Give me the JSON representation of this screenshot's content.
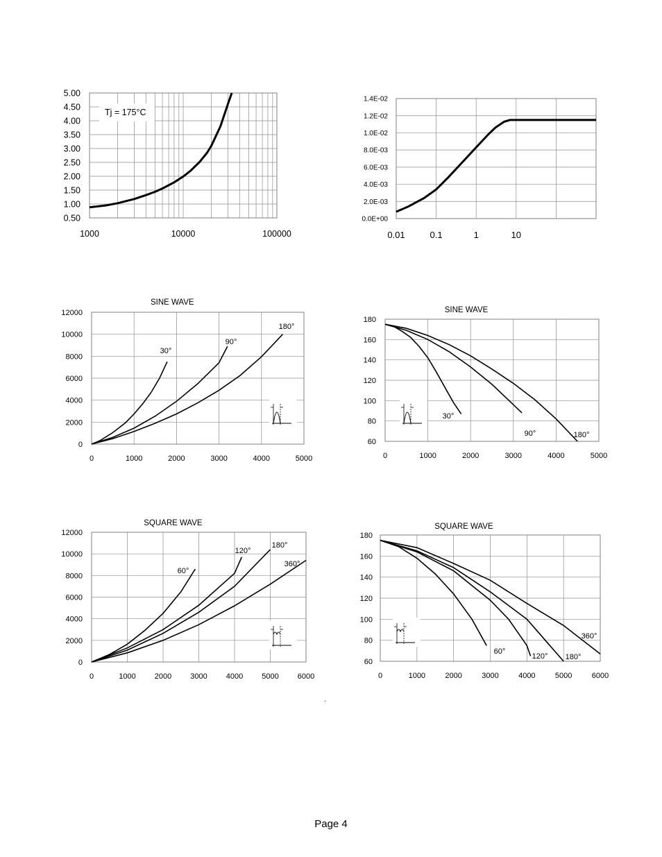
{
  "page": {
    "footer": "Page 4",
    "stray_mark": "."
  },
  "chart_data": [
    {
      "type": "line",
      "title": "",
      "xlabel": "",
      "ylabel": "",
      "xscale": "log",
      "xlim": [
        1000,
        100000
      ],
      "ylim": [
        0.5,
        5.0
      ],
      "xticks": [
        "1000",
        "10000",
        "100000"
      ],
      "yticks": [
        "0.50",
        "1.00",
        "1.50",
        "2.00",
        "2.50",
        "3.00",
        "3.50",
        "4.00",
        "4.50",
        "5.00"
      ],
      "grid": true,
      "annotation": "Tj = 175°C",
      "series": [
        {
          "x": [
            1000,
            1500,
            2000,
            3000,
            4000,
            5000,
            6000,
            8000,
            10000,
            12000,
            15000,
            18000,
            20000,
            25000,
            30000,
            33000
          ],
          "y": [
            0.88,
            0.95,
            1.03,
            1.18,
            1.32,
            1.44,
            1.56,
            1.78,
            1.99,
            2.2,
            2.52,
            2.85,
            3.1,
            3.8,
            4.6,
            5.0
          ]
        }
      ]
    },
    {
      "type": "line",
      "title": "",
      "xlabel": "",
      "ylabel": "",
      "xscale": "log",
      "xlim": [
        0.01,
        1000
      ],
      "ylim": [
        0,
        0.014
      ],
      "xticks": [
        "0.01",
        "0.1",
        "1",
        "10"
      ],
      "yticks": [
        "0.0E+00",
        "2.0E-03",
        "4.0E-03",
        "6.0E-03",
        "8.0E-03",
        "1.0E-02",
        "1.2E-02",
        "1.4E-02"
      ],
      "grid": true,
      "series": [
        {
          "x": [
            0.01,
            0.02,
            0.05,
            0.1,
            0.2,
            0.5,
            1,
            2,
            3,
            5,
            7,
            10,
            100,
            1000
          ],
          "y": [
            0.0008,
            0.0014,
            0.0024,
            0.0034,
            0.0048,
            0.0068,
            0.0083,
            0.0098,
            0.0106,
            0.0113,
            0.0115,
            0.0115,
            0.0115,
            0.0115
          ]
        }
      ]
    },
    {
      "type": "line",
      "title": "SINE WAVE",
      "xlabel": "",
      "ylabel": "",
      "xlim": [
        0,
        5000
      ],
      "ylim": [
        0,
        12000
      ],
      "xticks": [
        "0",
        "1000",
        "2000",
        "3000",
        "4000",
        "5000"
      ],
      "yticks": [
        "0",
        "2000",
        "4000",
        "6000",
        "8000",
        "10000",
        "12000"
      ],
      "grid": true,
      "series": [
        {
          "name": "30°",
          "x": [
            0,
            200,
            500,
            800,
            1000,
            1200,
            1400,
            1600,
            1780
          ],
          "y": [
            0,
            320,
            1050,
            1950,
            2750,
            3650,
            4700,
            6000,
            7500
          ]
        },
        {
          "name": "90°",
          "x": [
            0,
            500,
            1000,
            1500,
            2000,
            2500,
            3000,
            3200
          ],
          "y": [
            0,
            620,
            1450,
            2550,
            3900,
            5500,
            7400,
            8900
          ]
        },
        {
          "name": "180°",
          "x": [
            0,
            500,
            1000,
            1500,
            2000,
            2500,
            3000,
            3500,
            4000,
            4500
          ],
          "y": [
            0,
            500,
            1150,
            1900,
            2750,
            3750,
            4900,
            6250,
            7950,
            10000
          ]
        }
      ]
    },
    {
      "type": "line",
      "title": "SINE WAVE",
      "xlabel": "",
      "ylabel": "",
      "xlim": [
        0,
        5000
      ],
      "ylim": [
        60,
        180
      ],
      "xticks": [
        "0",
        "1000",
        "2000",
        "3000",
        "4000",
        "5000"
      ],
      "yticks": [
        "60",
        "80",
        "100",
        "120",
        "140",
        "160",
        "180"
      ],
      "grid": true,
      "series": [
        {
          "name": "30°",
          "x": [
            0,
            200,
            400,
            600,
            800,
            1000,
            1200,
            1400,
            1600,
            1780
          ],
          "y": [
            175,
            173,
            168,
            162,
            153,
            142,
            128,
            113,
            98,
            87
          ]
        },
        {
          "name": "90°",
          "x": [
            0,
            500,
            1000,
            1500,
            2000,
            2500,
            3000,
            3200
          ],
          "y": [
            175,
            169,
            160,
            148,
            133,
            116,
            96,
            88
          ]
        },
        {
          "name": "180°",
          "x": [
            0,
            500,
            1000,
            1500,
            2000,
            2500,
            3000,
            3500,
            4000,
            4500
          ],
          "y": [
            175,
            171,
            164,
            155,
            144,
            131,
            117,
            101,
            82,
            60
          ]
        }
      ]
    },
    {
      "type": "line",
      "title": "SQUARE WAVE",
      "xlabel": "",
      "ylabel": "",
      "xlim": [
        0,
        6000
      ],
      "ylim": [
        0,
        12000
      ],
      "xticks": [
        "0",
        "1000",
        "2000",
        "3000",
        "4000",
        "5000",
        "6000"
      ],
      "yticks": [
        "0",
        "2000",
        "4000",
        "6000",
        "8000",
        "10000",
        "12000"
      ],
      "grid": true,
      "series": [
        {
          "name": "60°",
          "x": [
            0,
            500,
            1000,
            1500,
            2000,
            2500,
            2900
          ],
          "y": [
            0,
            700,
            1650,
            2950,
            4500,
            6500,
            8600
          ]
        },
        {
          "name": "120°",
          "x": [
            0,
            1000,
            2000,
            3000,
            4000,
            4200
          ],
          "y": [
            0,
            1300,
            3000,
            5250,
            8200,
            9700
          ]
        },
        {
          "name": "180°",
          "x": [
            0,
            1000,
            2000,
            3000,
            4000,
            5000
          ],
          "y": [
            0,
            1100,
            2650,
            4600,
            7000,
            10400
          ]
        },
        {
          "name": "360°",
          "x": [
            0,
            1000,
            2000,
            3000,
            4000,
            5000,
            6000
          ],
          "y": [
            0,
            850,
            2000,
            3450,
            5200,
            7200,
            9400
          ]
        }
      ]
    },
    {
      "type": "line",
      "title": "SQUARE WAVE",
      "xlabel": "",
      "ylabel": "",
      "xlim": [
        0,
        6000
      ],
      "ylim": [
        60,
        180
      ],
      "xticks": [
        "0",
        "1000",
        "2000",
        "3000",
        "4000",
        "5000",
        "6000"
      ],
      "yticks": [
        "60",
        "80",
        "100",
        "120",
        "140",
        "160",
        "180"
      ],
      "grid": true,
      "series": [
        {
          "name": "60°",
          "x": [
            0,
            500,
            1000,
            1500,
            2000,
            2500,
            2900
          ],
          "y": [
            175,
            169,
            158,
            143,
            124,
            100,
            75
          ]
        },
        {
          "name": "120°",
          "x": [
            0,
            1000,
            2000,
            3000,
            3500,
            4000,
            4100
          ],
          "y": [
            175,
            164,
            146,
            118,
            100,
            75,
            65
          ]
        },
        {
          "name": "180°",
          "x": [
            0,
            1000,
            2000,
            3000,
            4000,
            4500,
            5000
          ],
          "y": [
            175,
            165,
            149,
            126,
            100,
            80,
            60
          ]
        },
        {
          "name": "360°",
          "x": [
            0,
            1000,
            2000,
            3000,
            4000,
            5000,
            6000
          ],
          "y": [
            175,
            168,
            153,
            137,
            115,
            94,
            67
          ]
        }
      ]
    }
  ]
}
